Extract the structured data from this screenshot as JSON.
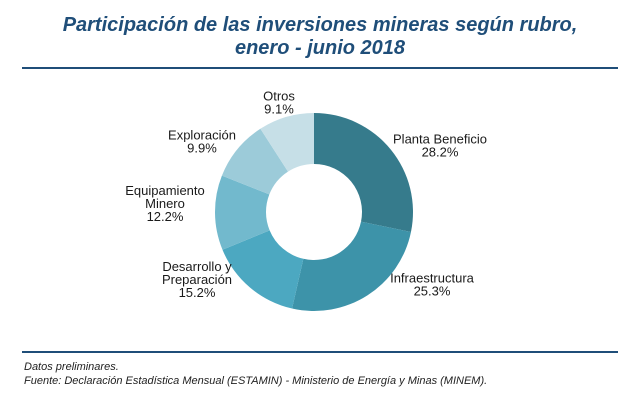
{
  "title_lines": [
    "Participación de las inversiones mineras según rubro,",
    "enero - junio 2018"
  ],
  "footer": {
    "note": "Datos preliminares.",
    "source": "Fuente: Declaración Estadística Mensual (ESTAMIN) - Ministerio de Energía y Minas (MINEM)."
  },
  "chart_data": {
    "type": "pie",
    "donut": true,
    "title": "Participación de las inversiones mineras según rubro, enero - junio 2018",
    "slices": [
      {
        "name": "Planta Beneficio",
        "label_lines": [
          "Planta Beneficio"
        ],
        "value": 28.2,
        "value_label": "28.2%",
        "color": "#367b8c"
      },
      {
        "name": "Infraestructura",
        "label_lines": [
          "Infraestructura"
        ],
        "value": 25.3,
        "value_label": "25.3%",
        "color": "#3d93a9"
      },
      {
        "name": "Desarrollo y Preparación",
        "label_lines": [
          "Desarrollo y",
          "Preparación"
        ],
        "value": 15.2,
        "value_label": "15.2%",
        "color": "#4ca8c1"
      },
      {
        "name": "Equipamiento Minero",
        "label_lines": [
          "Equipamiento",
          "Minero"
        ],
        "value": 12.2,
        "value_label": "12.2%",
        "color": "#72b9cd"
      },
      {
        "name": "Exploración",
        "label_lines": [
          "Exploración"
        ],
        "value": 9.9,
        "value_label": "9.9%",
        "color": "#9ccbd9"
      },
      {
        "name": "Otros",
        "label_lines": [
          "Otros"
        ],
        "value": 9.1,
        "value_label": "9.1%",
        "color": "#c6dfe7"
      }
    ],
    "legend": "none"
  }
}
